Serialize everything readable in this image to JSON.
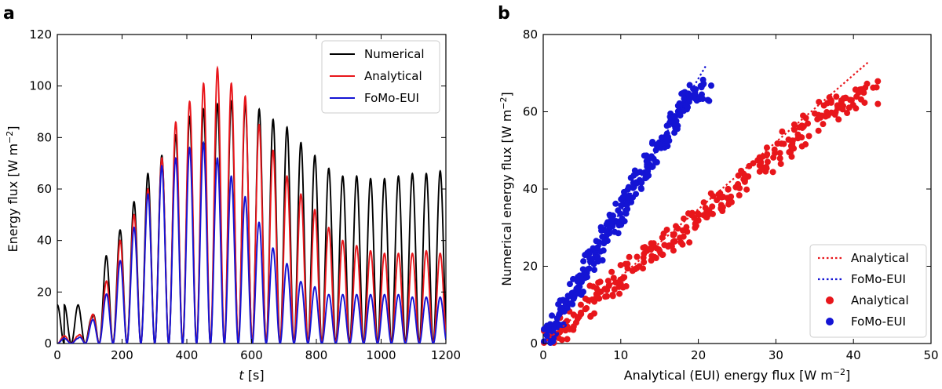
{
  "chart_data": [
    {
      "panel_label": "a",
      "type": "line",
      "xlabel_italic": "t",
      "xlabel_unit": " [s]",
      "ylabel": "Energy flux [W m",
      "ylabel_exp": "−2",
      "ylabel_close": "]",
      "xlim": [
        0,
        1200
      ],
      "ylim": [
        0,
        120
      ],
      "xticks": [
        0,
        200,
        400,
        600,
        800,
        1000,
        1200
      ],
      "yticks": [
        0,
        20,
        40,
        60,
        80,
        100,
        120
      ],
      "period_s": 43,
      "series": [
        {
          "name": "Numerical",
          "color": "#000000",
          "peaks": [
            15,
            15,
            10,
            34,
            44,
            55,
            66,
            73,
            81,
            88,
            91,
            93,
            94,
            93,
            91,
            87,
            84,
            78,
            73,
            68,
            65,
            65,
            64,
            64,
            65,
            66,
            66,
            67
          ]
        },
        {
          "name": "Analytical",
          "color": "#e8161b",
          "peaks": [
            3,
            3,
            11,
            24,
            40,
            50,
            60,
            72,
            86,
            94,
            101,
            107,
            101,
            96,
            85,
            75,
            65,
            58,
            52,
            45,
            40,
            38,
            36,
            35,
            35,
            35,
            36,
            35
          ]
        },
        {
          "name": "FoMo-EUI",
          "color": "#1414d4",
          "peaks": [
            2,
            2,
            9,
            19,
            32,
            45,
            58,
            69,
            72,
            76,
            78,
            72,
            65,
            57,
            47,
            37,
            31,
            24,
            22,
            19,
            19,
            19,
            19,
            19,
            19,
            18,
            18,
            18
          ]
        }
      ]
    },
    {
      "panel_label": "b",
      "type": "scatter",
      "xlabel": "Analytical (EUI) energy flux [W m",
      "xlabel_exp": "−2",
      "xlabel_close": "]",
      "ylabel": "Numerical energy flux [W m",
      "ylabel_exp": "−2",
      "ylabel_close": "]",
      "xlim": [
        0,
        50
      ],
      "ylim": [
        0,
        80
      ],
      "xticks": [
        0,
        10,
        20,
        30,
        40,
        50
      ],
      "yticks": [
        0,
        20,
        40,
        60,
        80
      ],
      "fit_lines": [
        {
          "name": "Analytical",
          "color": "#e8161b",
          "x": [
            0,
            42
          ],
          "y": [
            0,
            73
          ]
        },
        {
          "name": "FoMo-EUI",
          "color": "#1414d4",
          "x": [
            0,
            21
          ],
          "y": [
            0,
            72
          ]
        }
      ],
      "scatter_series": [
        {
          "name": "Analytical",
          "color": "#e8161b",
          "x": [
            1,
            2,
            3,
            4,
            5,
            6,
            7,
            8,
            9,
            10,
            11,
            12,
            13,
            14,
            15,
            16,
            17,
            18,
            19,
            20,
            21,
            22,
            23,
            24,
            25,
            26,
            27,
            28,
            29,
            30,
            31,
            32,
            33,
            34,
            35,
            36,
            37,
            38,
            39,
            40,
            41,
            42
          ],
          "y": [
            1,
            3,
            5,
            6,
            8,
            10,
            12,
            14,
            15,
            17,
            18,
            20,
            22,
            23,
            25,
            26,
            28,
            29,
            31,
            32,
            34,
            36,
            37,
            39,
            41,
            42,
            44,
            46,
            47,
            49,
            50,
            52,
            54,
            56,
            58,
            60,
            61,
            62,
            63,
            63,
            64,
            65
          ]
        },
        {
          "name": "FoMo-EUI",
          "color": "#1414d4",
          "x": [
            0.5,
            1,
            1.5,
            2,
            2.5,
            3,
            3.5,
            4,
            4.5,
            5,
            5.5,
            6,
            6.5,
            7,
            7.5,
            8,
            8.5,
            9,
            9.5,
            10,
            10.5,
            11,
            11.5,
            12,
            12.5,
            13,
            13.5,
            14,
            14.5,
            15,
            15.5,
            16,
            16.5,
            17,
            17.5,
            18,
            18.5,
            19,
            19.5,
            20,
            21
          ],
          "y": [
            2,
            3,
            5,
            7,
            9,
            10,
            12,
            14,
            15,
            17,
            19,
            21,
            22,
            24,
            26,
            28,
            29,
            31,
            33,
            34,
            36,
            38,
            40,
            42,
            43,
            45,
            47,
            48,
            50,
            52,
            53,
            55,
            57,
            58,
            60,
            61,
            63,
            64,
            65,
            66,
            65
          ]
        }
      ]
    }
  ]
}
